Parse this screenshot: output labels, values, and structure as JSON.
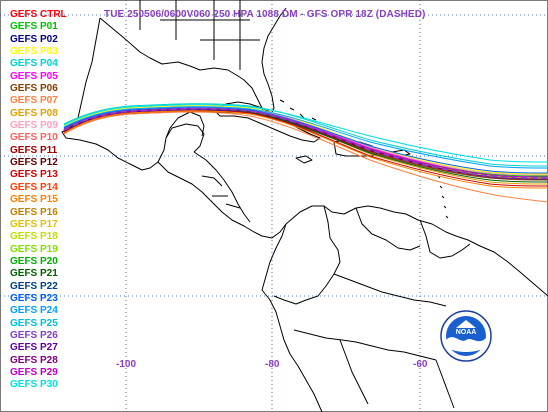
{
  "title": "TUE 250506/0600V060  250 HPA 1088 DM - GFS OPR 18Z (DASHED)",
  "legend": [
    {
      "label": "GEFS CTRL",
      "color": "#ff0000"
    },
    {
      "label": "GEFS P01",
      "color": "#00c000"
    },
    {
      "label": "GEFS P02",
      "color": "#000080"
    },
    {
      "label": "GEFS P03",
      "color": "#ffff00"
    },
    {
      "label": "GEFS P04",
      "color": "#00d0d0"
    },
    {
      "label": "GEFS P05",
      "color": "#ff00ff"
    },
    {
      "label": "GEFS P06",
      "color": "#804000"
    },
    {
      "label": "GEFS P07",
      "color": "#ff8040"
    },
    {
      "label": "GEFS P08",
      "color": "#e0a000"
    },
    {
      "label": "GEFS P09",
      "color": "#ff9fbf"
    },
    {
      "label": "GEFS P10",
      "color": "#ff6060"
    },
    {
      "label": "GEFS P11",
      "color": "#a00000"
    },
    {
      "label": "GEFS P12",
      "color": "#600000"
    },
    {
      "label": "GEFS P13",
      "color": "#d00000"
    },
    {
      "label": "GEFS P14",
      "color": "#ff4000"
    },
    {
      "label": "GEFS P15",
      "color": "#ff8000"
    },
    {
      "label": "GEFS P16",
      "color": "#c08000"
    },
    {
      "label": "GEFS P17",
      "color": "#e0c000"
    },
    {
      "label": "GEFS P18",
      "color": "#c0e000"
    },
    {
      "label": "GEFS P19",
      "color": "#80e000"
    },
    {
      "label": "GEFS P20",
      "color": "#00b000"
    },
    {
      "label": "GEFS P21",
      "color": "#006000"
    },
    {
      "label": "GEFS P22",
      "color": "#004080"
    },
    {
      "label": "GEFS P23",
      "color": "#0060ff"
    },
    {
      "label": "GEFS P24",
      "color": "#00a0ff"
    },
    {
      "label": "GEFS P25",
      "color": "#00c0e0"
    },
    {
      "label": "GEFS P26",
      "color": "#8040c0"
    },
    {
      "label": "GEFS P27",
      "color": "#6000a0"
    },
    {
      "label": "GEFS P28",
      "color": "#800080"
    },
    {
      "label": "GEFS P29",
      "color": "#c000c0"
    },
    {
      "label": "GEFS P30",
      "color": "#00e0e0"
    }
  ],
  "map": {
    "lon_labels": [
      "-100",
      "-80",
      "-60"
    ],
    "land_color": "#000000",
    "grid_color": "#1f4fa8",
    "opr_color": "#8a3fbf"
  },
  "logo": {
    "text": "NOAA"
  }
}
